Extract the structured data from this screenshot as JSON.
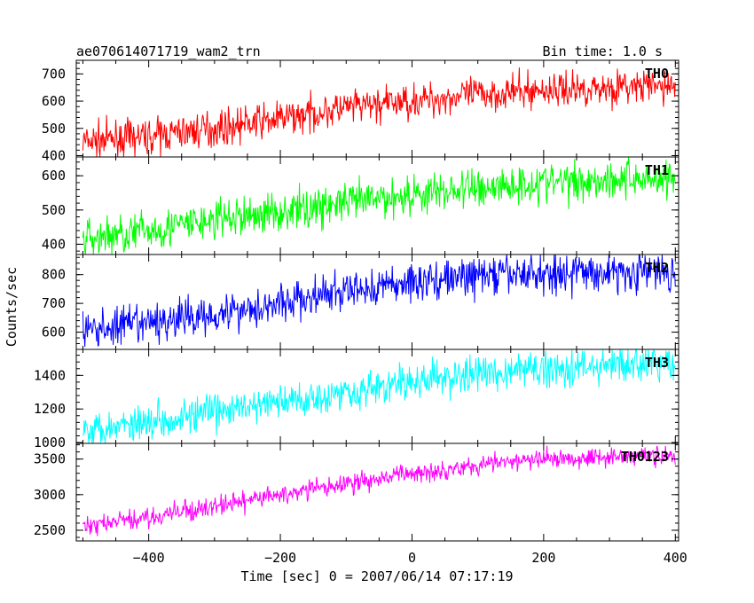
{
  "header": {
    "title": "ae070614071719_wam2_trn",
    "bin_time": "Bin time: 1.0 s"
  },
  "chart_data": {
    "type": "line",
    "title": "ae070614071719_wam2_trn",
    "xlabel": "Time [sec] 0 = 2007/06/14 07:17:19",
    "ylabel": "Counts/sec",
    "xlim": [
      -510,
      405
    ],
    "x_ticks": [
      -400,
      -200,
      0,
      200,
      400
    ],
    "x_tick_labels": [
      "−400",
      "−200",
      "0",
      "200",
      "400"
    ],
    "x_range": [
      -500,
      400
    ],
    "x_step": 1,
    "grid": false,
    "panels": [
      {
        "name": "TH0",
        "color": "#ff0000",
        "ylim": [
          395,
          750
        ],
        "y_ticks": [
          400,
          500,
          600,
          700
        ],
        "y_tick_labels": [
          "400",
          "500",
          "600",
          "700"
        ],
        "trend_x": [
          -500,
          -400,
          -300,
          -200,
          -100,
          0,
          100,
          200,
          300,
          400
        ],
        "trend_y": [
          450,
          470,
          500,
          535,
          575,
          600,
          625,
          640,
          650,
          655
        ],
        "noise": 32
      },
      {
        "name": "TH1",
        "color": "#00ff00",
        "ylim": [
          370,
          655
        ],
        "y_ticks": [
          400,
          500,
          600
        ],
        "y_tick_labels": [
          "400",
          "500",
          "600"
        ],
        "trend_x": [
          -500,
          -400,
          -300,
          -200,
          -100,
          0,
          100,
          200,
          300,
          400
        ],
        "trend_y": [
          415,
          440,
          470,
          495,
          520,
          545,
          565,
          580,
          590,
          595
        ],
        "noise": 30
      },
      {
        "name": "TH2",
        "color": "#0000ff",
        "ylim": [
          540,
          870
        ],
        "y_ticks": [
          600,
          700,
          800
        ],
        "y_tick_labels": [
          "600",
          "700",
          "800"
        ],
        "trend_x": [
          -500,
          -400,
          -300,
          -200,
          -100,
          0,
          100,
          200,
          300,
          400
        ],
        "trend_y": [
          605,
          630,
          665,
          700,
          740,
          775,
          795,
          805,
          810,
          810
        ],
        "noise": 35
      },
      {
        "name": "TH3",
        "color": "#00ffff",
        "ylim": [
          995,
          1555
        ],
        "y_ticks": [
          1000,
          1200,
          1400
        ],
        "y_tick_labels": [
          "1000",
          "1200",
          "1400"
        ],
        "trend_x": [
          -500,
          -400,
          -300,
          -200,
          -100,
          0,
          100,
          200,
          300,
          400
        ],
        "trend_y": [
          1080,
          1130,
          1180,
          1240,
          1300,
          1360,
          1410,
          1440,
          1460,
          1470
        ],
        "noise": 55
      },
      {
        "name": "TH0123",
        "color": "#ff00ff",
        "ylim": [
          2350,
          3720
        ],
        "y_ticks": [
          2500,
          3000,
          3500
        ],
        "y_tick_labels": [
          "2500",
          "3000",
          "3500"
        ],
        "trend_x": [
          -500,
          -400,
          -300,
          -200,
          -100,
          0,
          100,
          200,
          300,
          400
        ],
        "trend_y": [
          2550,
          2680,
          2830,
          3000,
          3150,
          3300,
          3420,
          3500,
          3540,
          3550
        ],
        "noise": 70
      }
    ]
  }
}
